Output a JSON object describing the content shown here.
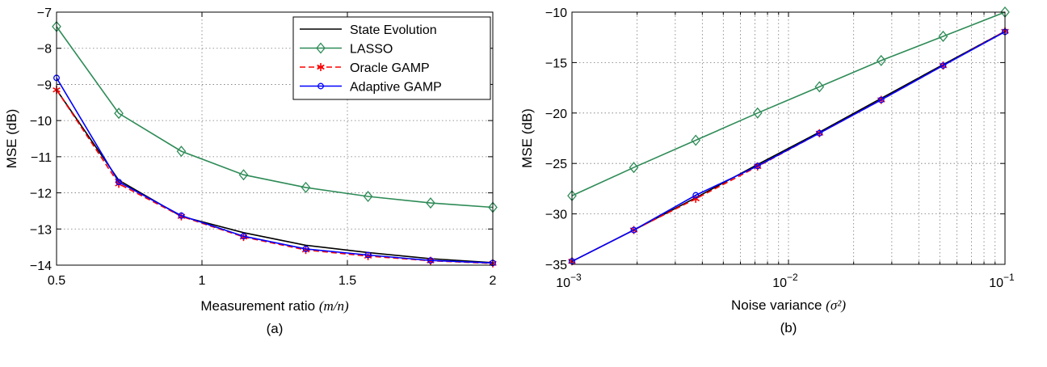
{
  "chart_data": [
    {
      "type": "line",
      "caption": "(a)",
      "xlabel_text": "Measurement ratio ",
      "xlabel_math": "(m/n)",
      "ylabel": "MSE (dB)",
      "xlim": [
        0.5,
        2
      ],
      "ylim": [
        -14,
        -7
      ],
      "xticks": [
        0.5,
        1,
        1.5,
        2
      ],
      "xtick_labels": [
        "0.5",
        "1",
        "1.5",
        "2"
      ],
      "yticks": [
        -14,
        -13,
        -12,
        -11,
        -10,
        -9,
        -8,
        -7
      ],
      "ytick_labels": [
        "−14",
        "−13",
        "−12",
        "−11",
        "−10",
        "−9",
        "−8",
        "−7"
      ],
      "x_scale": "linear",
      "grid": true,
      "legend_position": "top-right",
      "series": [
        {
          "name": "State Evolution",
          "color": "#000000",
          "style": "solid",
          "marker": "none",
          "x": [
            0.5,
            0.714,
            0.929,
            1.143,
            1.357,
            1.571,
            1.786,
            2.0
          ],
          "y": [
            -9.15,
            -11.65,
            -12.65,
            -13.1,
            -13.45,
            -13.65,
            -13.82,
            -13.93
          ]
        },
        {
          "name": "LASSO",
          "color": "#2e8b57",
          "style": "solid",
          "marker": "diamond",
          "x": [
            0.5,
            0.714,
            0.929,
            1.143,
            1.357,
            1.571,
            1.786,
            2.0
          ],
          "y": [
            -7.4,
            -9.8,
            -10.85,
            -11.5,
            -11.85,
            -12.1,
            -12.28,
            -12.4
          ]
        },
        {
          "name": "Oracle GAMP",
          "color": "#ff0000",
          "style": "dashed",
          "marker": "asterisk",
          "x": [
            0.5,
            0.714,
            0.929,
            1.143,
            1.357,
            1.571,
            1.786,
            2.0
          ],
          "y": [
            -9.15,
            -11.75,
            -12.65,
            -13.22,
            -13.58,
            -13.75,
            -13.88,
            -13.95
          ]
        },
        {
          "name": "Adaptive GAMP",
          "color": "#0000ff",
          "style": "solid",
          "marker": "circle",
          "x": [
            0.5,
            0.714,
            0.929,
            1.143,
            1.357,
            1.571,
            1.786,
            2.0
          ],
          "y": [
            -8.82,
            -11.7,
            -12.63,
            -13.2,
            -13.55,
            -13.72,
            -13.87,
            -13.94
          ]
        }
      ]
    },
    {
      "type": "line",
      "caption": "(b)",
      "xlabel_text": "Noise variance ",
      "xlabel_math": "(σ²)",
      "ylabel": "MSE (dB)",
      "xlim": [
        0.001,
        0.1
      ],
      "ylim": [
        -35,
        -10
      ],
      "x_scale": "log",
      "xtick_labels": [
        {
          "base": "10",
          "exp": "−3"
        },
        {
          "base": "10",
          "exp": "−2"
        },
        {
          "base": "10",
          "exp": "−1"
        }
      ],
      "yticks": [
        -35,
        -30,
        -25,
        -20,
        -15,
        -10
      ],
      "ytick_labels": [
        "−35",
        "−30",
        "−25",
        "−20",
        "−15",
        "−10"
      ],
      "grid": true,
      "series": [
        {
          "name": "State Evolution",
          "color": "#000000",
          "style": "solid",
          "marker": "none",
          "x": [
            0.001,
            0.00193,
            0.00373,
            0.0072,
            0.0139,
            0.0268,
            0.0518,
            0.1
          ],
          "y": [
            -34.7,
            -31.6,
            -28.4,
            -25.1,
            -21.9,
            -18.55,
            -15.2,
            -11.9
          ]
        },
        {
          "name": "LASSO",
          "color": "#2e8b57",
          "style": "solid",
          "marker": "diamond",
          "x": [
            0.001,
            0.00193,
            0.00373,
            0.0072,
            0.0139,
            0.0268,
            0.0518,
            0.1
          ],
          "y": [
            -28.2,
            -25.4,
            -22.7,
            -20.0,
            -17.4,
            -14.8,
            -12.4,
            -10.0
          ]
        },
        {
          "name": "Oracle GAMP",
          "color": "#ff0000",
          "style": "dashed",
          "marker": "asterisk",
          "x": [
            0.001,
            0.00193,
            0.00373,
            0.0072,
            0.0139,
            0.0268,
            0.0518,
            0.1
          ],
          "y": [
            -34.7,
            -31.6,
            -28.5,
            -25.3,
            -22.0,
            -18.7,
            -15.3,
            -11.9
          ]
        },
        {
          "name": "Adaptive GAMP",
          "color": "#0000ff",
          "style": "solid",
          "marker": "circle",
          "x": [
            0.001,
            0.00193,
            0.00373,
            0.0072,
            0.0139,
            0.0268,
            0.0518,
            0.1
          ],
          "y": [
            -34.7,
            -31.6,
            -28.15,
            -25.25,
            -22.0,
            -18.7,
            -15.3,
            -11.95
          ]
        }
      ]
    }
  ]
}
